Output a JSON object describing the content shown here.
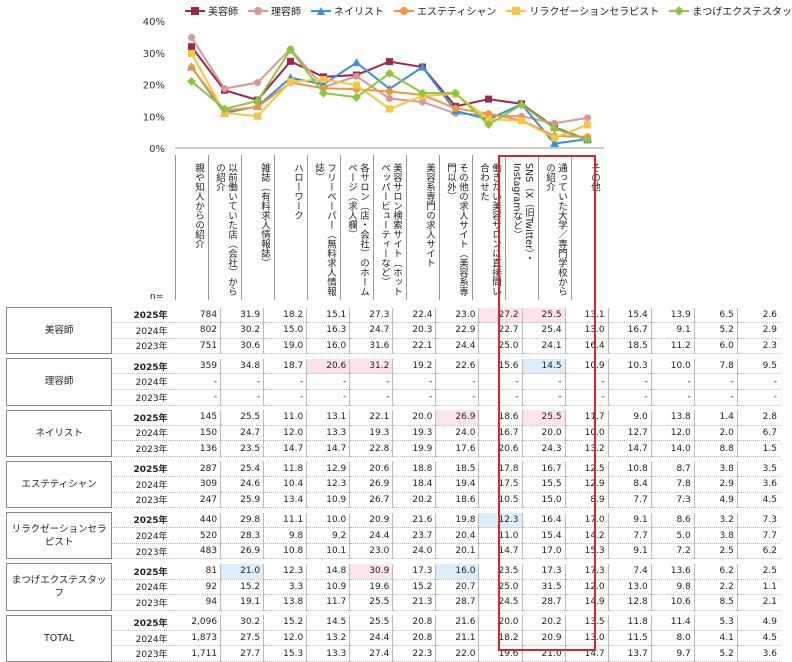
{
  "legend": [
    {
      "name": "美容師",
      "color": "#a0264b",
      "marker": "square"
    },
    {
      "name": "理容師",
      "color": "#d99796",
      "marker": "circle"
    },
    {
      "name": "ネイリスト",
      "color": "#3b8fe0",
      "marker": "triangle"
    },
    {
      "name": "エステティシャン",
      "color": "#f2963b",
      "marker": "circle"
    },
    {
      "name": "リラクゼーションセラピスト",
      "color": "#f8c63c",
      "marker": "square"
    },
    {
      "name": "まつげエクステスタッフ",
      "color": "#8cc63f",
      "marker": "diamond"
    }
  ],
  "chart_data": {
    "type": "line",
    "y_ticks": [
      "0%",
      "10%",
      "20%",
      "30%",
      "40%"
    ],
    "ylim": [
      0,
      40
    ],
    "categories": [
      "親や知人からの紹介",
      "以前働いていた店（会社）からの紹介",
      "雑誌（有料求人情報誌）",
      "ハローワーク",
      "フリーペーパー（無料求人情報誌）",
      "各サロン（店・会社）のホームページ（求人欄）",
      "美容サロン検索サイト（ホットペッパービューティーなど）",
      "美容系専門の求人サイト",
      "その他の求人サイト（美容系専門以外）",
      "働きたい美容サロンに直接問い合わせた",
      "SNS（X（旧Twitter）・Instagramなど）",
      "通っていた大学／専門学校からの紹介",
      "その他"
    ],
    "series": [
      {
        "name": "美容師",
        "values": [
          31.9,
          18.2,
          15.1,
          27.3,
          22.4,
          23.0,
          27.2,
          25.5,
          13.1,
          15.4,
          13.9,
          6.5,
          2.6
        ]
      },
      {
        "name": "理容師",
        "values": [
          34.8,
          18.7,
          20.6,
          31.2,
          19.2,
          22.6,
          15.6,
          14.5,
          10.9,
          10.3,
          10.0,
          7.8,
          9.5
        ]
      },
      {
        "name": "ネイリスト",
        "values": [
          25.5,
          11.0,
          13.1,
          22.1,
          20.0,
          26.9,
          18.6,
          25.5,
          11.7,
          9.0,
          13.8,
          1.4,
          2.8
        ]
      },
      {
        "name": "エステティシャン",
        "values": [
          25.4,
          11.8,
          12.9,
          20.6,
          18.8,
          18.5,
          17.8,
          16.7,
          12.5,
          10.8,
          8.7,
          3.8,
          3.5
        ]
      },
      {
        "name": "リラクゼーションセラピスト",
        "values": [
          29.8,
          11.1,
          10.0,
          20.9,
          21.6,
          19.8,
          12.3,
          16.4,
          17.0,
          9.1,
          8.6,
          3.2,
          7.3
        ]
      },
      {
        "name": "まつげエクステスタッフ",
        "values": [
          21.0,
          12.3,
          14.8,
          30.9,
          17.3,
          16.0,
          23.5,
          17.3,
          17.3,
          7.4,
          13.6,
          6.2,
          2.5
        ]
      }
    ]
  },
  "table": {
    "n_label": "n=",
    "groups": [
      {
        "name": "美容師",
        "rows": [
          {
            "year": "2025年",
            "n": "784",
            "values": [
              "31.9",
              "18.2",
              "15.1",
              "27.3",
              "22.4",
              "23.0",
              "27.2",
              "25.5",
              "13.1",
              "15.4",
              "13.9",
              "6.5",
              "2.6"
            ],
            "hl": {
              "6": "pink",
              "7": "pink"
            }
          },
          {
            "year": "2024年",
            "n": "802",
            "values": [
              "30.2",
              "15.0",
              "16.3",
              "24.7",
              "20.3",
              "22.9",
              "22.7",
              "25.4",
              "13.0",
              "16.7",
              "9.1",
              "5.2",
              "2.9"
            ]
          },
          {
            "year": "2023年",
            "n": "751",
            "values": [
              "30.6",
              "19.0",
              "16.0",
              "31.6",
              "22.1",
              "24.4",
              "25.0",
              "24.1",
              "16.4",
              "18.5",
              "11.2",
              "6.0",
              "2.3"
            ]
          }
        ]
      },
      {
        "name": "理容師",
        "rows": [
          {
            "year": "2025年",
            "n": "359",
            "values": [
              "34.8",
              "18.7",
              "20.6",
              "31.2",
              "19.2",
              "22.6",
              "15.6",
              "14.5",
              "10.9",
              "10.3",
              "10.0",
              "7.8",
              "9.5"
            ],
            "hl": {
              "2": "pink",
              "3": "pink",
              "7": "blue"
            }
          },
          {
            "year": "2024年",
            "n": "-",
            "values": [
              "-",
              "-",
              "-",
              "-",
              "-",
              "-",
              "-",
              "-",
              "-",
              "-",
              "-",
              "-",
              "-"
            ]
          },
          {
            "year": "2023年",
            "n": "-",
            "values": [
              "-",
              "-",
              "-",
              "-",
              "-",
              "-",
              "-",
              "-",
              "-",
              "-",
              "-",
              "-",
              "-"
            ]
          }
        ]
      },
      {
        "name": "ネイリスト",
        "rows": [
          {
            "year": "2025年",
            "n": "145",
            "values": [
              "25.5",
              "11.0",
              "13.1",
              "22.1",
              "20.0",
              "26.9",
              "18.6",
              "25.5",
              "11.7",
              "9.0",
              "13.8",
              "1.4",
              "2.8"
            ],
            "hl": {
              "5": "pink",
              "7": "pink"
            }
          },
          {
            "year": "2024年",
            "n": "150",
            "values": [
              "24.7",
              "12.0",
              "13.3",
              "19.3",
              "19.3",
              "24.0",
              "16.7",
              "20.0",
              "10.0",
              "12.7",
              "12.0",
              "2.0",
              "6.7"
            ]
          },
          {
            "year": "2023年",
            "n": "136",
            "values": [
              "23.5",
              "14.7",
              "14.7",
              "22.8",
              "19.9",
              "17.6",
              "20.6",
              "24.3",
              "13.2",
              "14.7",
              "14.0",
              "8.8",
              "1.5"
            ]
          }
        ]
      },
      {
        "name": "エステティシャン",
        "rows": [
          {
            "year": "2025年",
            "n": "287",
            "values": [
              "25.4",
              "11.8",
              "12.9",
              "20.6",
              "18.8",
              "18.5",
              "17.8",
              "16.7",
              "12.5",
              "10.8",
              "8.7",
              "3.8",
              "3.5"
            ]
          },
          {
            "year": "2024年",
            "n": "309",
            "values": [
              "24.6",
              "10.4",
              "12.3",
              "26.9",
              "18.4",
              "19.4",
              "17.5",
              "15.5",
              "12.9",
              "8.4",
              "7.8",
              "2.9",
              "3.6"
            ]
          },
          {
            "year": "2023年",
            "n": "247",
            "values": [
              "25.9",
              "13.4",
              "10.9",
              "26.7",
              "20.2",
              "18.6",
              "10.5",
              "15.0",
              "8.9",
              "7.7",
              "7.3",
              "4.9",
              "4.5"
            ]
          }
        ]
      },
      {
        "name": "リラクゼーションセラピスト",
        "rows": [
          {
            "year": "2025年",
            "n": "440",
            "values": [
              "29.8",
              "11.1",
              "10.0",
              "20.9",
              "21.6",
              "19.8",
              "12.3",
              "16.4",
              "17.0",
              "9.1",
              "8.6",
              "3.2",
              "7.3"
            ],
            "hl": {
              "6": "blue"
            }
          },
          {
            "year": "2024年",
            "n": "520",
            "values": [
              "28.3",
              "9.8",
              "9.2",
              "24.4",
              "23.7",
              "20.4",
              "11.0",
              "15.4",
              "14.2",
              "7.7",
              "5.0",
              "3.8",
              "7.7"
            ]
          },
          {
            "year": "2023年",
            "n": "483",
            "values": [
              "26.9",
              "10.8",
              "10.1",
              "23.0",
              "24.0",
              "20.1",
              "14.7",
              "17.0",
              "15.3",
              "9.1",
              "7.2",
              "2.5",
              "6.2"
            ]
          }
        ]
      },
      {
        "name": "まつげエクステスタッフ",
        "rows": [
          {
            "year": "2025年",
            "n": "81",
            "values": [
              "21.0",
              "12.3",
              "14.8",
              "30.9",
              "17.3",
              "16.0",
              "23.5",
              "17.3",
              "17.3",
              "7.4",
              "13.6",
              "6.2",
              "2.5"
            ],
            "hl": {
              "0": "blue",
              "3": "pink",
              "5": "blue"
            }
          },
          {
            "year": "2024年",
            "n": "92",
            "values": [
              "15.2",
              "3.3",
              "10.9",
              "19.6",
              "15.2",
              "20.7",
              "25.0",
              "31.5",
              "12.0",
              "13.0",
              "9.8",
              "2.2",
              "1.1"
            ]
          },
          {
            "year": "2023年",
            "n": "94",
            "values": [
              "19.1",
              "13.8",
              "11.7",
              "25.5",
              "21.3",
              "28.7",
              "24.5",
              "28.7",
              "14.9",
              "12.8",
              "10.6",
              "8.5",
              "2.1"
            ]
          }
        ]
      },
      {
        "name": "TOTAL",
        "rows": [
          {
            "year": "2025年",
            "n": "2,096",
            "values": [
              "30.2",
              "15.2",
              "14.5",
              "25.5",
              "20.8",
              "21.6",
              "20.0",
              "20.2",
              "13.5",
              "11.8",
              "11.4",
              "5.3",
              "4.9"
            ]
          },
          {
            "year": "2024年",
            "n": "1,873",
            "values": [
              "27.5",
              "12.0",
              "13.2",
              "24.4",
              "20.8",
              "21.1",
              "18.2",
              "20.9",
              "13.0",
              "11.5",
              "8.0",
              "4.1",
              "4.5"
            ]
          },
          {
            "year": "2023年",
            "n": "1,711",
            "values": [
              "27.7",
              "15.3",
              "13.3",
              "27.4",
              "22.3",
              "22.0",
              "19.6",
              "21.0",
              "14.7",
              "13.7",
              "9.7",
              "5.2",
              "3.6"
            ]
          }
        ]
      }
    ]
  }
}
